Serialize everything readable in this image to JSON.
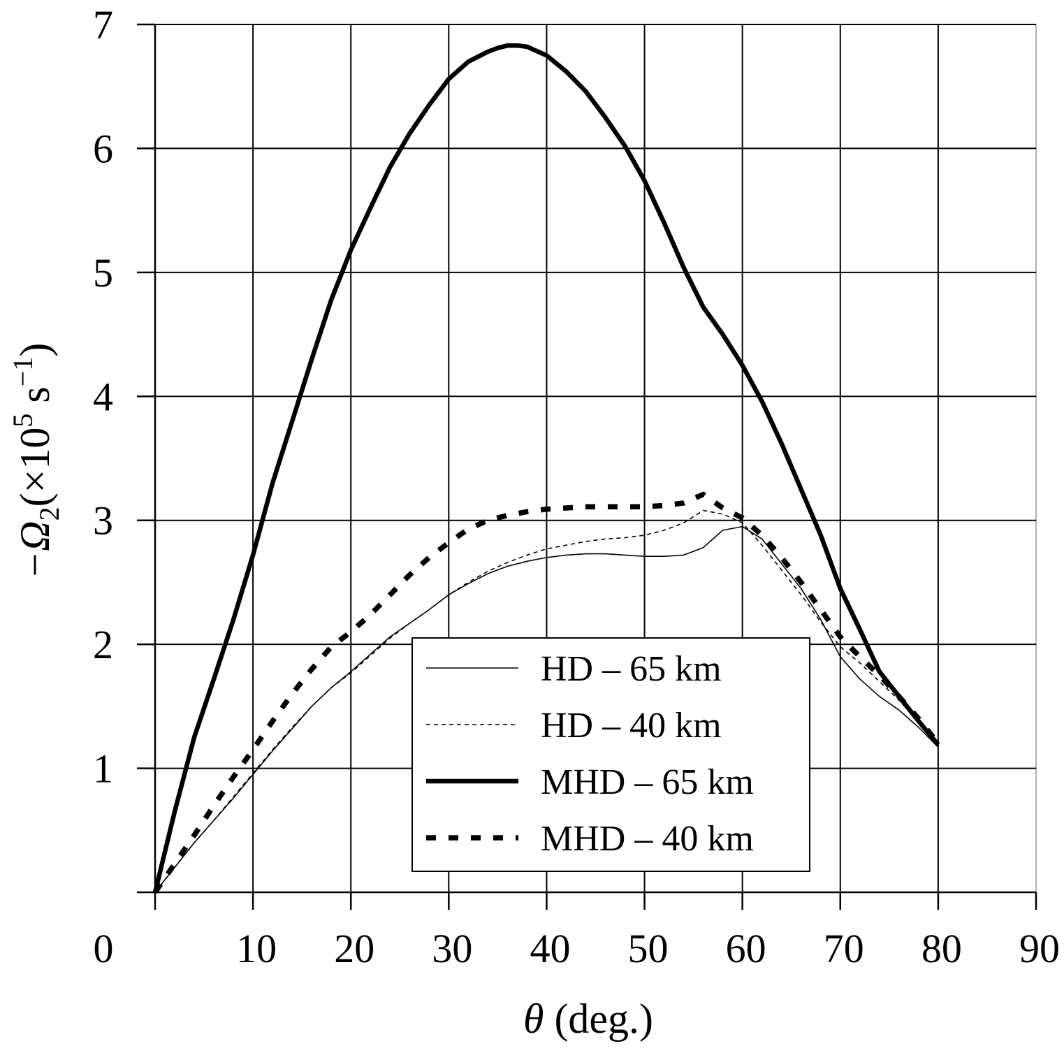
{
  "chart_data": {
    "type": "line",
    "title": "",
    "xlabel_symbol": "θ",
    "xlabel_rest": " (deg.)",
    "ylabel_main": "−Ω",
    "ylabel_sub": "2",
    "ylabel_paren": "(×10",
    "ylabel_exp": "5",
    "ylabel_unit": " s",
    "ylabel_unit_exp": "−1",
    "ylabel_close": ")",
    "xlim": [
      0,
      90
    ],
    "ylim": [
      0,
      7
    ],
    "xticks": [
      0,
      10,
      20,
      30,
      40,
      50,
      60,
      70,
      80,
      90
    ],
    "xtick_labels": [
      "0",
      "10",
      "20",
      "30",
      "40",
      "50",
      "60",
      "70",
      "80",
      "90"
    ],
    "yticks": [
      1,
      2,
      3,
      4,
      5,
      6,
      7
    ],
    "ytick_labels": [
      "1",
      "2",
      "3",
      "4",
      "5",
      "6",
      "7"
    ],
    "grid": true,
    "legend_position": "center-bottom",
    "colors": {
      "line": "#000000",
      "grid": "#000000",
      "frame": "#b0b0b0",
      "background": "#ffffff"
    },
    "series": [
      {
        "name": "HD – 65 km",
        "style": "thin-solid",
        "x": [
          0,
          2,
          4,
          6,
          8,
          10,
          12,
          14,
          16,
          18,
          20,
          22,
          24,
          26,
          28,
          30,
          32,
          34,
          36,
          38,
          40,
          42,
          44,
          46,
          48,
          50,
          52,
          54,
          56,
          58,
          60,
          62,
          64,
          66,
          68,
          70,
          72,
          74,
          76,
          78,
          80
        ],
        "y": [
          0,
          0.2,
          0.4,
          0.58,
          0.76,
          0.95,
          1.14,
          1.32,
          1.5,
          1.65,
          1.78,
          1.92,
          2.06,
          2.17,
          2.28,
          2.4,
          2.49,
          2.57,
          2.63,
          2.67,
          2.7,
          2.72,
          2.73,
          2.73,
          2.72,
          2.71,
          2.71,
          2.72,
          2.78,
          2.92,
          2.95,
          2.85,
          2.65,
          2.45,
          2.2,
          1.9,
          1.72,
          1.58,
          1.47,
          1.33,
          1.17
        ]
      },
      {
        "name": "HD – 40 km",
        "style": "thin-dashed",
        "x": [
          0,
          2,
          4,
          6,
          8,
          10,
          12,
          14,
          16,
          18,
          20,
          22,
          24,
          26,
          28,
          30,
          32,
          34,
          36,
          38,
          40,
          42,
          44,
          46,
          48,
          50,
          52,
          54,
          56,
          58,
          60,
          62,
          64,
          66,
          68,
          70,
          72,
          74,
          76,
          78,
          80
        ],
        "y": [
          0,
          0.2,
          0.4,
          0.58,
          0.77,
          0.96,
          1.15,
          1.33,
          1.5,
          1.65,
          1.77,
          1.91,
          2.05,
          2.17,
          2.28,
          2.4,
          2.5,
          2.59,
          2.66,
          2.72,
          2.77,
          2.8,
          2.83,
          2.85,
          2.86,
          2.88,
          2.92,
          2.98,
          3.08,
          3.05,
          2.98,
          2.8,
          2.6,
          2.4,
          2.18,
          1.98,
          1.85,
          1.7,
          1.55,
          1.37,
          1.17
        ]
      },
      {
        "name": "MHD – 65 km",
        "style": "thick-solid",
        "x": [
          0,
          2,
          4,
          6,
          8,
          10,
          12,
          14,
          16,
          18,
          20,
          22,
          24,
          26,
          28,
          30,
          32,
          34,
          35,
          36,
          37,
          38,
          40,
          42,
          44,
          46,
          48,
          50,
          52,
          54,
          56,
          58,
          60,
          62,
          64,
          66,
          68,
          70,
          72,
          74,
          76,
          78,
          80
        ],
        "y": [
          0,
          0.65,
          1.25,
          1.72,
          2.2,
          2.72,
          3.3,
          3.8,
          4.3,
          4.78,
          5.18,
          5.52,
          5.85,
          6.12,
          6.35,
          6.56,
          6.7,
          6.78,
          6.81,
          6.83,
          6.83,
          6.82,
          6.75,
          6.62,
          6.46,
          6.25,
          6.02,
          5.74,
          5.4,
          5.04,
          4.72,
          4.5,
          4.25,
          3.96,
          3.62,
          3.25,
          2.88,
          2.45,
          2.12,
          1.78,
          1.58,
          1.38,
          1.19
        ]
      },
      {
        "name": "MHD – 40 km",
        "style": "thick-dashed",
        "x": [
          0,
          2,
          4,
          6,
          8,
          10,
          12,
          14,
          16,
          18,
          20,
          22,
          24,
          26,
          28,
          30,
          32,
          34,
          36,
          38,
          40,
          42,
          44,
          46,
          48,
          50,
          52,
          54,
          56,
          58,
          60,
          62,
          64,
          66,
          68,
          70,
          72,
          74,
          76,
          78,
          80
        ],
        "y": [
          0,
          0.23,
          0.46,
          0.7,
          0.93,
          1.15,
          1.38,
          1.6,
          1.8,
          1.98,
          2.1,
          2.24,
          2.4,
          2.56,
          2.7,
          2.82,
          2.93,
          3.0,
          3.04,
          3.07,
          3.09,
          3.1,
          3.11,
          3.11,
          3.11,
          3.11,
          3.12,
          3.14,
          3.21,
          3.1,
          3.02,
          2.88,
          2.7,
          2.5,
          2.28,
          2.06,
          1.9,
          1.75,
          1.58,
          1.4,
          1.2
        ]
      }
    ]
  }
}
